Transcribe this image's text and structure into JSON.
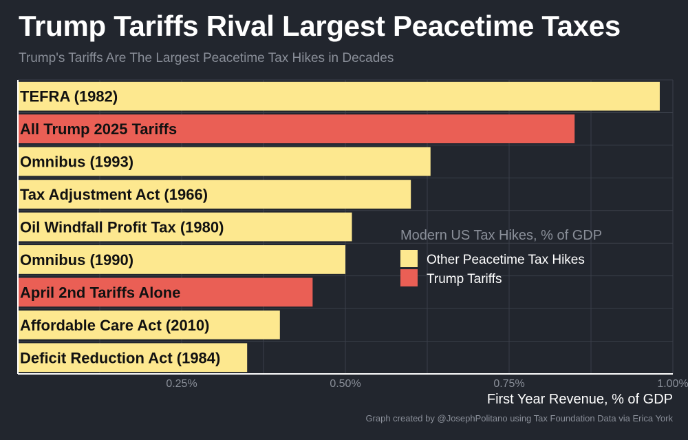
{
  "title": "Trump Tariffs Rival Largest Peacetime Taxes",
  "subtitle": "Trump's Tariffs Are The Largest Peacetime Tax Hikes in Decades",
  "footer": "Graph created by @JosephPolitano using Tax Foundation Data via Erica York",
  "colors": {
    "background": "#22262e",
    "grid": "#3a3f49",
    "axis": "#ffffff",
    "other": "#fde88f",
    "trump": "#ea5f55",
    "muted_text": "#8a8f99",
    "bar_text": "#111111"
  },
  "chart_data": {
    "type": "bar",
    "orientation": "horizontal",
    "xlabel": "First Year Revenue, % of GDP",
    "ylabel": "",
    "xlim": [
      0,
      1.0
    ],
    "x_ticks": [
      0.25,
      0.5,
      0.75,
      1.0
    ],
    "x_tick_labels": [
      "0.25%",
      "0.50%",
      "0.75%",
      "1.00%"
    ],
    "grid": true,
    "legend": {
      "title": "Modern US Tax Hikes, % of GDP",
      "placement": "center-right",
      "entries": [
        {
          "key": "other",
          "label": "Other Peacetime Tax Hikes"
        },
        {
          "key": "trump",
          "label": "Trump Tariffs"
        }
      ]
    },
    "categories": [
      "TEFRA (1982)",
      "All Trump 2025 Tariffs",
      "Omnibus (1993)",
      "Tax Adjustment Act (1966)",
      "Oil Windfall Profit Tax (1980)",
      "Omnibus (1990)",
      "April 2nd Tariffs Alone",
      "Affordable Care Act (2010)",
      "Deficit Reduction Act (1984)"
    ],
    "values": [
      0.98,
      0.85,
      0.63,
      0.6,
      0.51,
      0.5,
      0.45,
      0.4,
      0.35
    ],
    "groups": [
      "other",
      "trump",
      "other",
      "other",
      "other",
      "other",
      "trump",
      "other",
      "other"
    ]
  }
}
